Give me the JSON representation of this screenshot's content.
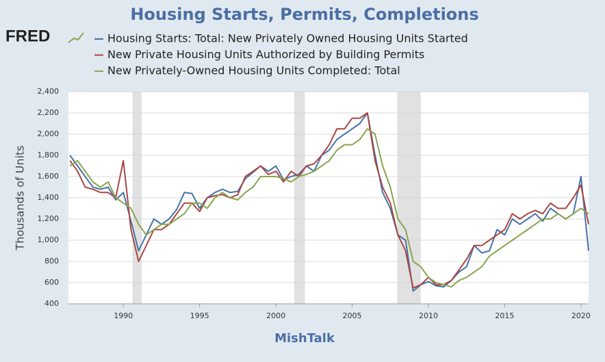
{
  "logo": "FRED",
  "chart_data": {
    "type": "line",
    "title": "Housing Starts, Permits, Completions",
    "ylabel": "Thousands of Units",
    "xlabel": "MishTalk",
    "x": [
      1986.5,
      1987,
      1987.5,
      1988,
      1988.5,
      1989,
      1989.5,
      1990,
      1990.5,
      1991,
      1991.5,
      1992,
      1992.5,
      1993,
      1993.5,
      1994,
      1994.5,
      1995,
      1995.5,
      1996,
      1996.5,
      1997,
      1997.5,
      1998,
      1998.5,
      1999,
      1999.5,
      2000,
      2000.5,
      2001,
      2001.5,
      2002,
      2002.5,
      2003,
      2003.5,
      2004,
      2004.5,
      2005,
      2005.5,
      2006,
      2006.5,
      2007,
      2007.5,
      2008,
      2008.5,
      2009,
      2009.5,
      2010,
      2010.5,
      2011,
      2011.5,
      2012,
      2012.5,
      2013,
      2013.5,
      2014,
      2014.5,
      2015,
      2015.5,
      2016,
      2016.5,
      2017,
      2017.5,
      2018,
      2018.5,
      2019,
      2019.5,
      2020,
      2020.5
    ],
    "series": [
      {
        "name": "Housing Starts: Total: New Privately Owned Housing Units Started",
        "color": "#4572a7",
        "values": [
          1800,
          1700,
          1600,
          1500,
          1480,
          1500,
          1380,
          1450,
          1180,
          900,
          1050,
          1200,
          1150,
          1200,
          1290,
          1450,
          1440,
          1300,
          1400,
          1450,
          1480,
          1450,
          1460,
          1580,
          1640,
          1700,
          1650,
          1700,
          1570,
          1600,
          1620,
          1700,
          1650,
          1800,
          1850,
          1950,
          2000,
          2050,
          2100,
          2200,
          1800,
          1450,
          1300,
          1050,
          1000,
          520,
          580,
          610,
          570,
          560,
          620,
          700,
          750,
          950,
          880,
          900,
          1100,
          1050,
          1200,
          1150,
          1200,
          1250,
          1180,
          1300,
          1250,
          1200,
          1250,
          1600,
          900
        ]
      },
      {
        "name": "New Private Housing Units Authorized by Building Permits",
        "color": "#aa4643",
        "values": [
          1750,
          1650,
          1500,
          1480,
          1450,
          1450,
          1400,
          1750,
          1100,
          800,
          950,
          1100,
          1100,
          1150,
          1250,
          1350,
          1350,
          1270,
          1400,
          1420,
          1430,
          1400,
          1430,
          1600,
          1650,
          1700,
          1620,
          1650,
          1550,
          1650,
          1600,
          1700,
          1720,
          1800,
          1900,
          2050,
          2050,
          2150,
          2150,
          2200,
          1750,
          1500,
          1350,
          1050,
          900,
          550,
          580,
          650,
          580,
          580,
          620,
          720,
          820,
          950,
          950,
          1000,
          1050,
          1100,
          1250,
          1200,
          1250,
          1280,
          1250,
          1350,
          1300,
          1300,
          1400,
          1520,
          1150
        ]
      },
      {
        "name": "New Privately-Owned Housing Units Completed: Total",
        "color": "#89a54e",
        "values": [
          1700,
          1750,
          1650,
          1550,
          1500,
          1550,
          1400,
          1350,
          1300,
          1150,
          1050,
          1100,
          1150,
          1150,
          1200,
          1250,
          1350,
          1350,
          1300,
          1400,
          1450,
          1400,
          1380,
          1450,
          1500,
          1600,
          1600,
          1600,
          1580,
          1550,
          1600,
          1620,
          1650,
          1700,
          1750,
          1850,
          1900,
          1900,
          1950,
          2050,
          2000,
          1700,
          1500,
          1200,
          1100,
          800,
          750,
          650,
          600,
          580,
          560,
          620,
          650,
          700,
          750,
          850,
          900,
          950,
          1000,
          1050,
          1100,
          1150,
          1200,
          1200,
          1250,
          1200,
          1250,
          1300,
          1250
        ]
      }
    ],
    "recessions": [
      [
        1990.6,
        1991.2
      ],
      [
        2001.2,
        2001.9
      ],
      [
        2007.95,
        2009.5
      ]
    ],
    "recession_color": "#e1e1e1",
    "xlim": [
      1986.4,
      2020.5
    ],
    "xticks": [
      1990,
      1995,
      2000,
      2005,
      2010,
      2015,
      2020
    ],
    "ylim": [
      400,
      2400
    ],
    "yticks": [
      400,
      600,
      800,
      {
        "value": 1000,
        "label": "1,000"
      },
      {
        "value": 1200,
        "label": "1,200"
      },
      {
        "value": 1400,
        "label": "1,400"
      },
      {
        "value": 1600,
        "label": "1,600"
      },
      {
        "value": 1800,
        "label": "1,800"
      },
      {
        "value": 2000,
        "label": "2,000"
      },
      {
        "value": 2200,
        "label": "2,200"
      },
      {
        "value": 2400,
        "label": "2,400"
      }
    ],
    "grid": true
  }
}
